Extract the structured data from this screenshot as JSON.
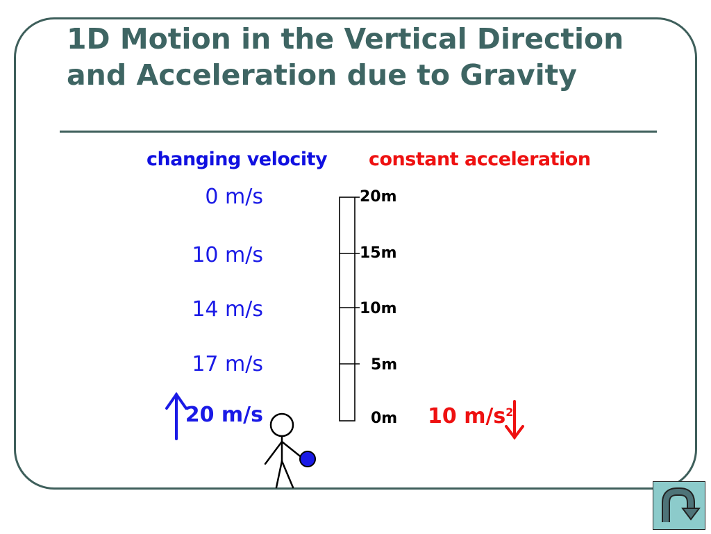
{
  "slide": {
    "title": "1D Motion in the Vertical Direction and Acceleration due to Gravity"
  },
  "diagram": {
    "velocity_header": "changing velocity",
    "acceleration_header": "constant acceleration",
    "velocities": [
      "0 m/s",
      "10 m/s",
      "14 m/s",
      "17 m/s",
      "20 m/s"
    ],
    "heights": [
      "20m",
      "15m",
      "10m",
      "5m",
      "0m"
    ],
    "acceleration_value": "10 m/s",
    "acceleration_exponent": "2",
    "colors": {
      "velocity": "#1a1ae6",
      "acceleration": "#ee1111",
      "title": "#3e6563"
    }
  },
  "nav": {
    "return_icon": "u-turn-arrow-icon"
  }
}
